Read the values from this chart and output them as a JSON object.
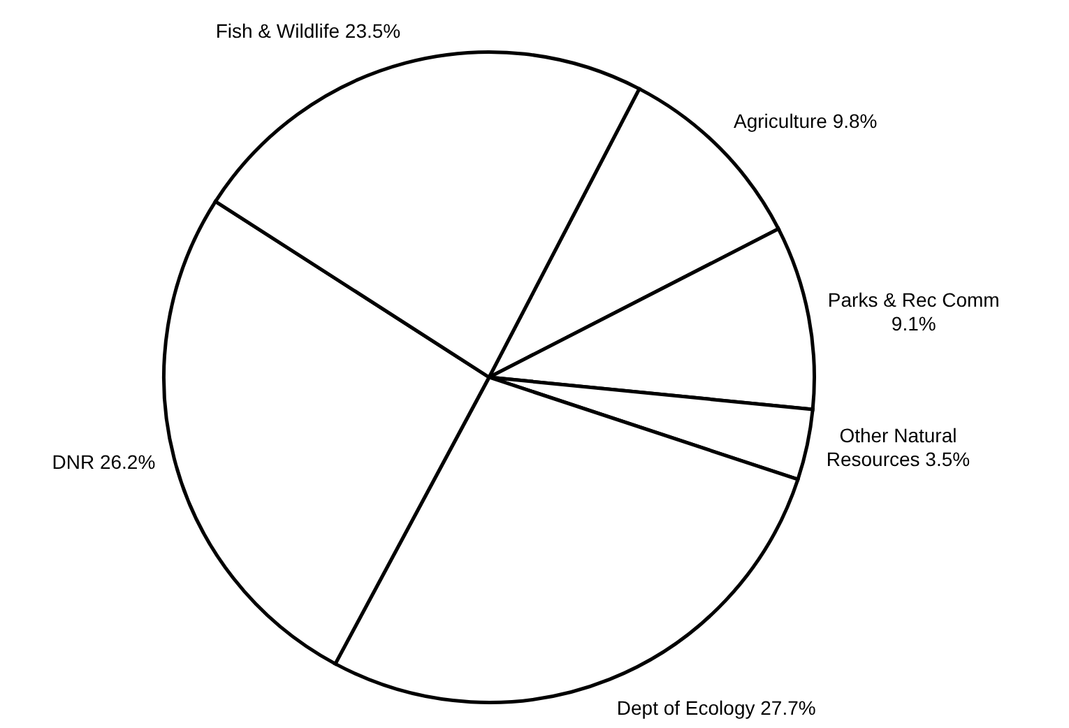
{
  "chart_data": {
    "type": "pie",
    "categories": [
      "Agriculture",
      "Parks & Rec Comm",
      "Other Natural Resources",
      "Dept of Ecology",
      "DNR",
      "Fish & Wildlife"
    ],
    "values": [
      9.8,
      9.1,
      3.5,
      27.7,
      26.2,
      23.5
    ],
    "colors": [
      "#ffffff",
      "#ffffff",
      "#ffffff",
      "#ffffff",
      "#ffffff",
      "#ffffff"
    ],
    "value_labels": [
      "9.8%",
      "9.1%",
      "3.5%",
      "27.7%",
      "26.2%",
      "23.5%"
    ]
  }
}
